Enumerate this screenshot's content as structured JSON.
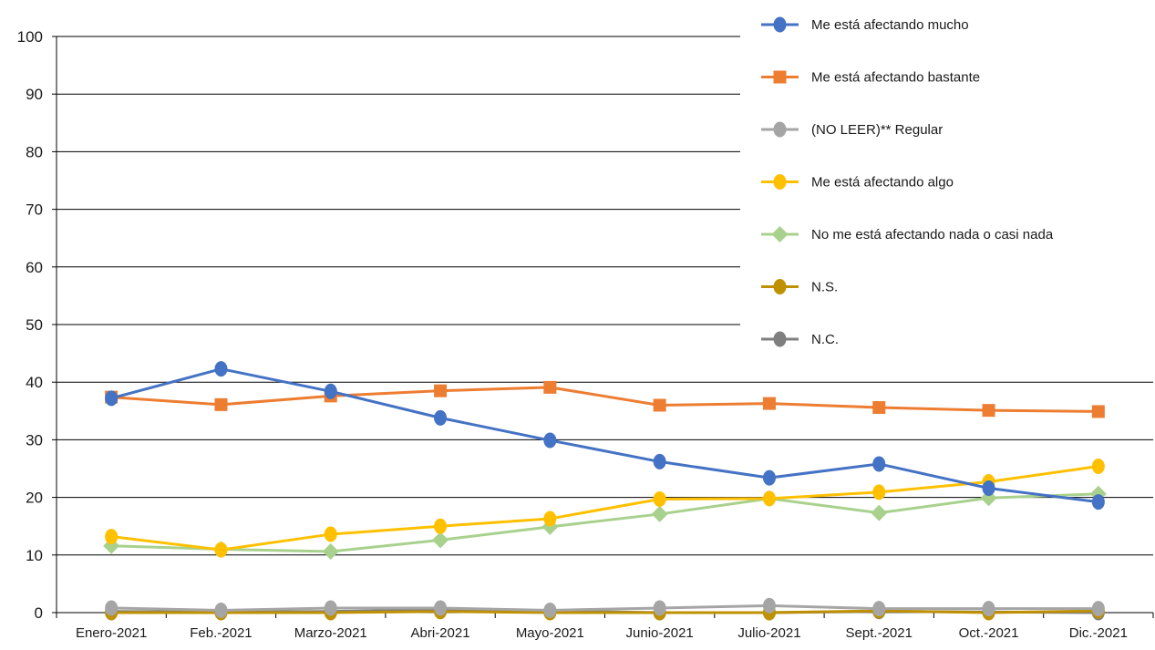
{
  "chart_data": {
    "type": "line",
    "title": "",
    "xlabel": "",
    "ylabel": "",
    "ylim": [
      0,
      100
    ],
    "yticks": [
      0,
      10,
      20,
      30,
      40,
      50,
      60,
      70,
      80,
      90,
      100
    ],
    "grid": "horizontal",
    "legend_position": "top-right",
    "categories": [
      "Enero-2021",
      "Feb.-2021",
      "Marzo-2021",
      "Abri-2021",
      "Mayo-2021",
      "Junio-2021",
      "Julio-2021",
      "Sept.-2021",
      "Oct.-2021",
      "Dic.-2021"
    ],
    "series": [
      {
        "name": "Me está afectando mucho",
        "color": "#4472C4",
        "marker": "circle",
        "values": [
          37.2,
          42.3,
          38.4,
          33.8,
          29.9,
          26.2,
          23.4,
          25.8,
          21.6,
          19.2
        ]
      },
      {
        "name": "Me está afectando bastante",
        "color": "#ED7D31",
        "marker": "square",
        "values": [
          37.4,
          36.1,
          37.6,
          38.5,
          39.1,
          36.0,
          36.3,
          35.6,
          35.1,
          34.9
        ]
      },
      {
        "name": "(NO LEER)** Regular",
        "color": "#A5A5A5",
        "marker": "circle",
        "values": [
          0.8,
          0.4,
          0.8,
          0.8,
          0.4,
          0.8,
          1.2,
          0.7,
          0.7,
          0.7
        ]
      },
      {
        "name": "Me está afectando algo",
        "color": "#FFC000",
        "marker": "circle",
        "values": [
          13.2,
          10.9,
          13.6,
          15.0,
          16.3,
          19.7,
          19.8,
          20.9,
          22.7,
          25.4
        ]
      },
      {
        "name": "No me está afectando nada o casi nada",
        "color": "#A9D18E",
        "marker": "diamond",
        "values": [
          11.6,
          11.0,
          10.6,
          12.6,
          14.9,
          17.1,
          19.8,
          17.3,
          19.9,
          20.6
        ]
      },
      {
        "name": "N.S.",
        "color": "#BF9000",
        "marker": "circle",
        "values": [
          0.0,
          0.0,
          0.0,
          0.2,
          0.0,
          0.0,
          0.0,
          0.3,
          0.0,
          0.3
        ]
      },
      {
        "name": "N.C.",
        "color": "#7F7F7F",
        "marker": "circle",
        "values": [
          0.2,
          0.1,
          0.2,
          0.5,
          0.3,
          0.0,
          0.0,
          0.2,
          0.1,
          0.0
        ]
      }
    ]
  }
}
